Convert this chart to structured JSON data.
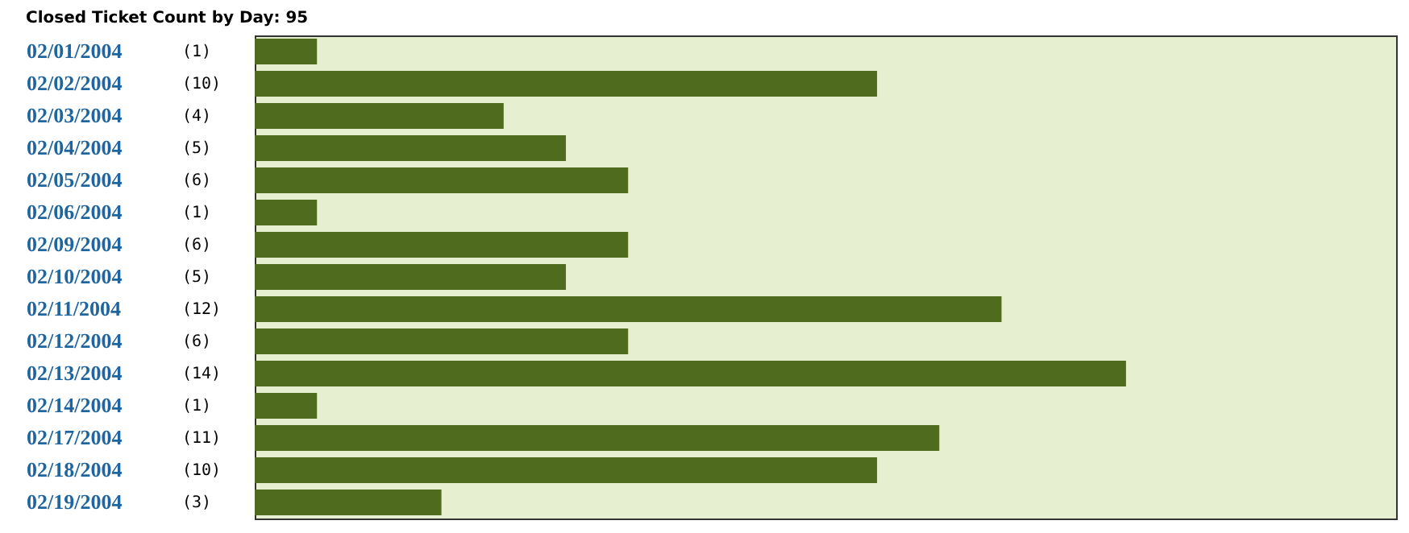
{
  "chart_data": {
    "type": "bar",
    "orientation": "horizontal",
    "title": "Closed Ticket Count by Day: 95",
    "categories": [
      "02/01/2004",
      "02/02/2004",
      "02/03/2004",
      "02/04/2004",
      "02/05/2004",
      "02/06/2004",
      "02/09/2004",
      "02/10/2004",
      "02/11/2004",
      "02/12/2004",
      "02/13/2004",
      "02/14/2004",
      "02/17/2004",
      "02/18/2004",
      "02/19/2004"
    ],
    "values": [
      1,
      10,
      4,
      5,
      6,
      1,
      6,
      5,
      12,
      6,
      14,
      1,
      11,
      10,
      3
    ],
    "value_labels": [
      "(1)",
      "(10)",
      "(4)",
      "(5)",
      "(6)",
      "(1)",
      "(6)",
      "(5)",
      "(12)",
      "(6)",
      "(14)",
      "(1)",
      "(11)",
      "(10)",
      "(3)"
    ],
    "color": "#4f6b1e"
  }
}
